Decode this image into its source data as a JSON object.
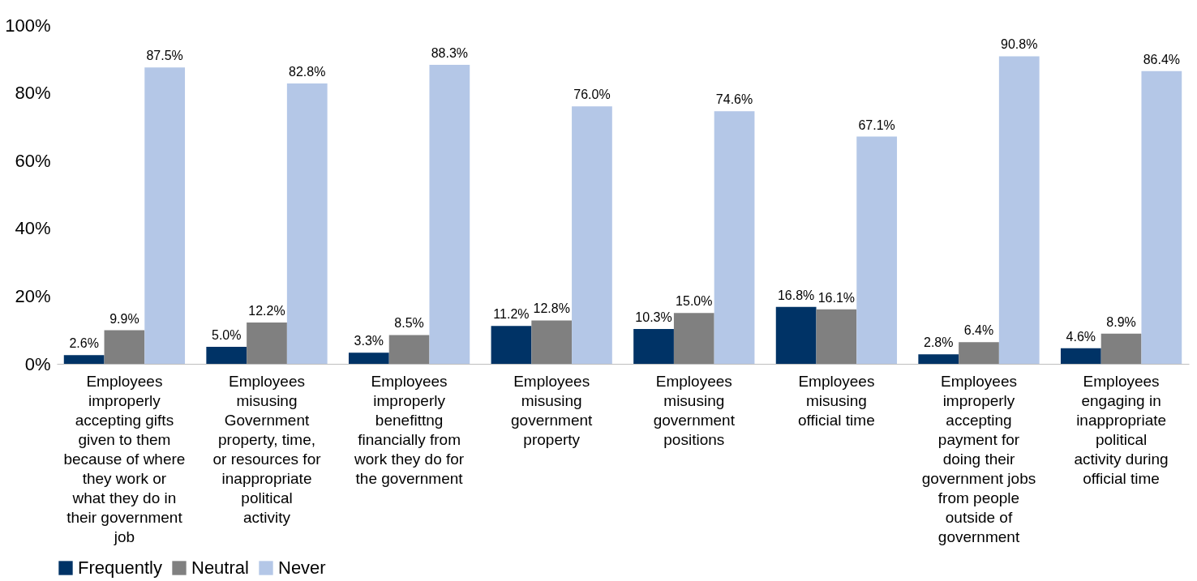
{
  "chart_data": {
    "type": "bar",
    "categories": [
      "Employees improperly accepting gifts given to them because of where they work or what they do in their government job",
      "Employees misusing Government property, time, or resources for inappropriate political activity",
      "Employees improperly benefittng financially from work they do for the government",
      "Employees misusing government property",
      "Employees misusing government positions",
      "Employees misusing official time",
      "Employees improperly accepting payment for doing their government jobs from people outside of government",
      "Employees engaging in inappropriate political activity during official time"
    ],
    "series": [
      {
        "name": "Frequently",
        "color": "#003366",
        "values": [
          2.6,
          5.0,
          3.3,
          11.2,
          10.3,
          16.8,
          2.8,
          4.6
        ],
        "value_labels": [
          "2.6%",
          "5.0%",
          "3.3%",
          "11.2%",
          "10.3%",
          "16.8%",
          "2.8%",
          "4.6%"
        ]
      },
      {
        "name": "Neutral",
        "color": "#808080",
        "values": [
          9.9,
          12.2,
          8.5,
          12.8,
          15.0,
          16.1,
          6.4,
          8.9
        ],
        "value_labels": [
          "9.9%",
          "12.2%",
          "8.5%",
          "12.8%",
          "15.0%",
          "16.1%",
          "6.4%",
          "8.9%"
        ]
      },
      {
        "name": "Never",
        "color": "#b4c7e7",
        "values": [
          87.5,
          82.8,
          88.3,
          76.0,
          74.6,
          67.1,
          90.8,
          86.4
        ],
        "value_labels": [
          "87.5%",
          "82.8%",
          "88.3%",
          "76.0%",
          "74.6%",
          "67.1%",
          "90.8%",
          "86.4%"
        ]
      }
    ],
    "ylim": [
      0,
      100
    ],
    "yticks": [
      {
        "value": 0,
        "label": "0%"
      },
      {
        "value": 20,
        "label": "20%"
      },
      {
        "value": 40,
        "label": "40%"
      },
      {
        "value": 60,
        "label": "60%"
      },
      {
        "value": 80,
        "label": "80%"
      },
      {
        "value": 100,
        "label": "100%"
      }
    ],
    "grid": false,
    "legend": "bottom"
  }
}
